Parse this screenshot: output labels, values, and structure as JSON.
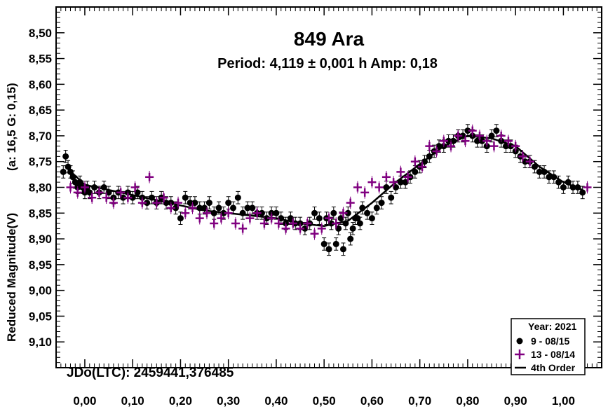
{
  "chart_data": {
    "type": "scatter",
    "title": "849  Ara",
    "subtitle": "Period: 4,119 ± 0,001 h  Amp: 0,18",
    "ylabel_left": "(a: 16,5  G: 0,15)",
    "ylabel": "Reduced Magnitude(V)",
    "xlabel": "",
    "annotation": "JDo(LTC): 2459441,376485",
    "xlim": [
      -0.06,
      1.08
    ],
    "ylim": [
      8.45,
      9.15
    ],
    "y_inverted": true,
    "x_ticks": [
      0.0,
      0.1,
      0.2,
      0.3,
      0.4,
      0.5,
      0.6,
      0.7,
      0.8,
      0.9,
      1.0
    ],
    "x_tick_labels": [
      "0,00",
      "0,10",
      "0,20",
      "0,30",
      "0,40",
      "0,50",
      "0,60",
      "0,70",
      "0,80",
      "0,90",
      "1,00"
    ],
    "y_ticks": [
      8.5,
      8.55,
      8.6,
      8.65,
      8.7,
      8.75,
      8.8,
      8.85,
      8.9,
      8.95,
      9.0,
      9.05,
      9.1
    ],
    "y_tick_labels": [
      "8,50",
      "8,55",
      "8,60",
      "8,65",
      "8,70",
      "8,75",
      "8,80",
      "8,85",
      "8,90",
      "8,95",
      "9,00",
      "9,05",
      "9,10"
    ],
    "legend": {
      "title": "Year: 2021",
      "position": "bottom-right",
      "entries": [
        "9 - 08/15",
        "13 - 08/14",
        "4th Order"
      ]
    },
    "colors": {
      "session_9": "#000000",
      "session_13": "#800080",
      "fit": "#000000"
    },
    "series": [
      {
        "name": "9 - 08/15",
        "marker": "circle",
        "x": [
          -0.045,
          -0.04,
          -0.035,
          -0.03,
          -0.025,
          -0.02,
          -0.015,
          -0.01,
          -0.005,
          0.0,
          0.005,
          0.01,
          0.02,
          0.03,
          0.04,
          0.05,
          0.06,
          0.07,
          0.08,
          0.09,
          0.1,
          0.11,
          0.12,
          0.13,
          0.14,
          0.15,
          0.16,
          0.17,
          0.18,
          0.19,
          0.2,
          0.21,
          0.22,
          0.23,
          0.24,
          0.25,
          0.26,
          0.27,
          0.28,
          0.29,
          0.3,
          0.31,
          0.32,
          0.33,
          0.34,
          0.35,
          0.36,
          0.37,
          0.38,
          0.39,
          0.4,
          0.41,
          0.42,
          0.43,
          0.44,
          0.45,
          0.46,
          0.47,
          0.48,
          0.49,
          0.5,
          0.505,
          0.51,
          0.515,
          0.52,
          0.525,
          0.53,
          0.535,
          0.54,
          0.545,
          0.55,
          0.555,
          0.56,
          0.565,
          0.57,
          0.575,
          0.58,
          0.59,
          0.6,
          0.61,
          0.62,
          0.63,
          0.64,
          0.65,
          0.66,
          0.67,
          0.68,
          0.69,
          0.7,
          0.71,
          0.72,
          0.73,
          0.74,
          0.75,
          0.76,
          0.77,
          0.78,
          0.79,
          0.8,
          0.81,
          0.82,
          0.83,
          0.84,
          0.85,
          0.86,
          0.87,
          0.88,
          0.89,
          0.9,
          0.91,
          0.92,
          0.93,
          0.94,
          0.95,
          0.96,
          0.97,
          0.98,
          0.99,
          1.0,
          1.01,
          1.02,
          1.03,
          1.04
        ],
        "y": [
          8.77,
          8.74,
          8.76,
          8.77,
          8.78,
          8.79,
          8.8,
          8.79,
          8.8,
          8.81,
          8.8,
          8.81,
          8.8,
          8.81,
          8.8,
          8.81,
          8.82,
          8.81,
          8.82,
          8.81,
          8.82,
          8.81,
          8.82,
          8.83,
          8.82,
          8.83,
          8.82,
          8.83,
          8.83,
          8.84,
          8.86,
          8.82,
          8.83,
          8.83,
          8.84,
          8.84,
          8.83,
          8.85,
          8.84,
          8.85,
          8.83,
          8.84,
          8.82,
          8.85,
          8.84,
          8.84,
          8.85,
          8.85,
          8.86,
          8.85,
          8.85,
          8.86,
          8.87,
          8.86,
          8.87,
          8.87,
          8.88,
          8.87,
          8.85,
          8.86,
          8.91,
          8.86,
          8.92,
          8.87,
          8.85,
          8.91,
          8.88,
          8.86,
          8.92,
          8.87,
          8.85,
          8.9,
          8.88,
          8.86,
          8.86,
          8.87,
          8.84,
          8.85,
          8.86,
          8.84,
          8.83,
          8.8,
          8.82,
          8.8,
          8.79,
          8.79,
          8.78,
          8.77,
          8.76,
          8.75,
          8.74,
          8.73,
          8.72,
          8.72,
          8.71,
          8.71,
          8.7,
          8.7,
          8.69,
          8.7,
          8.71,
          8.71,
          8.72,
          8.7,
          8.69,
          8.71,
          8.72,
          8.72,
          8.73,
          8.74,
          8.75,
          8.75,
          8.76,
          8.77,
          8.77,
          8.78,
          8.78,
          8.79,
          8.8,
          8.79,
          8.8,
          8.8,
          8.81
        ],
        "error": 0.012
      },
      {
        "name": "13 - 08/14",
        "marker": "plus",
        "x": [
          -0.03,
          -0.015,
          0.0,
          0.015,
          0.03,
          0.045,
          0.06,
          0.075,
          0.09,
          0.105,
          0.12,
          0.135,
          0.15,
          0.165,
          0.18,
          0.195,
          0.21,
          0.225,
          0.24,
          0.255,
          0.27,
          0.285,
          0.3,
          0.315,
          0.33,
          0.345,
          0.36,
          0.375,
          0.39,
          0.405,
          0.42,
          0.435,
          0.45,
          0.465,
          0.48,
          0.495,
          0.51,
          0.525,
          0.54,
          0.555,
          0.57,
          0.585,
          0.6,
          0.615,
          0.63,
          0.645,
          0.66,
          0.675,
          0.69,
          0.705,
          0.72,
          0.735,
          0.75,
          0.765,
          0.78,
          0.795,
          0.81,
          0.825,
          0.84,
          0.855,
          0.87,
          0.885,
          0.9,
          0.915,
          0.93,
          1.05
        ],
        "y": [
          8.8,
          8.81,
          8.8,
          8.82,
          8.81,
          8.82,
          8.83,
          8.81,
          8.82,
          8.8,
          8.83,
          8.78,
          8.83,
          8.82,
          8.84,
          8.83,
          8.85,
          8.84,
          8.86,
          8.85,
          8.87,
          8.86,
          8.85,
          8.87,
          8.88,
          8.86,
          8.85,
          8.87,
          8.86,
          8.87,
          8.88,
          8.87,
          8.88,
          8.87,
          8.89,
          8.88,
          8.86,
          8.87,
          8.85,
          8.83,
          8.8,
          8.81,
          8.79,
          8.8,
          8.78,
          8.79,
          8.77,
          8.78,
          8.75,
          8.76,
          8.72,
          8.73,
          8.71,
          8.72,
          8.7,
          8.71,
          8.69,
          8.7,
          8.71,
          8.72,
          8.7,
          8.71,
          8.72,
          8.74,
          8.75,
          8.8
        ],
        "error": 0.012
      },
      {
        "name": "4th Order",
        "marker": "line",
        "x": [
          -0.04,
          0.0,
          0.05,
          0.1,
          0.15,
          0.2,
          0.25,
          0.3,
          0.35,
          0.4,
          0.45,
          0.5,
          0.55,
          0.6,
          0.65,
          0.7,
          0.75,
          0.8,
          0.85,
          0.9,
          0.95,
          1.0,
          1.04
        ],
        "y": [
          8.76,
          8.795,
          8.805,
          8.815,
          8.825,
          8.835,
          8.845,
          8.85,
          8.855,
          8.86,
          8.87,
          8.875,
          8.865,
          8.83,
          8.79,
          8.755,
          8.72,
          8.7,
          8.705,
          8.72,
          8.76,
          8.79,
          8.805
        ]
      }
    ]
  }
}
